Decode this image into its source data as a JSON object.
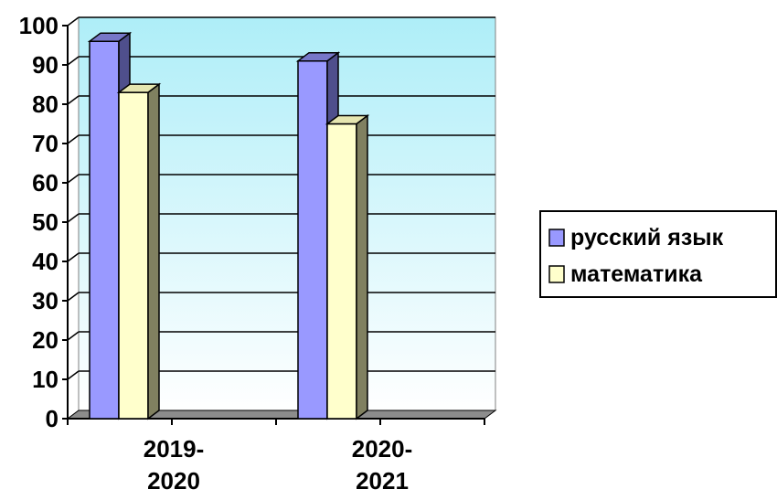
{
  "chart_data": {
    "type": "bar",
    "categories": [
      [
        "2019-",
        "2020"
      ],
      [
        "2020-",
        "2021"
      ]
    ],
    "series": [
      {
        "name": "русский язык",
        "values": [
          96,
          91
        ],
        "color": "#9999ff",
        "side_color": "#4f4f8c",
        "top_color": "#7777c8"
      },
      {
        "name": "математика",
        "values": [
          83,
          75
        ],
        "color": "#ffffcc",
        "side_color": "#808060",
        "top_color": "#e6e6b0"
      }
    ],
    "ylim": [
      0,
      100
    ],
    "yticks": [
      "0",
      "10",
      "20",
      "30",
      "40",
      "50",
      "60",
      "70",
      "80",
      "90",
      "100"
    ],
    "grid": true,
    "legend_position": "right",
    "plot_background_top": "#aeeef8",
    "plot_background_bottom": "#ffffff",
    "floor_color": "#8c8c8c"
  }
}
